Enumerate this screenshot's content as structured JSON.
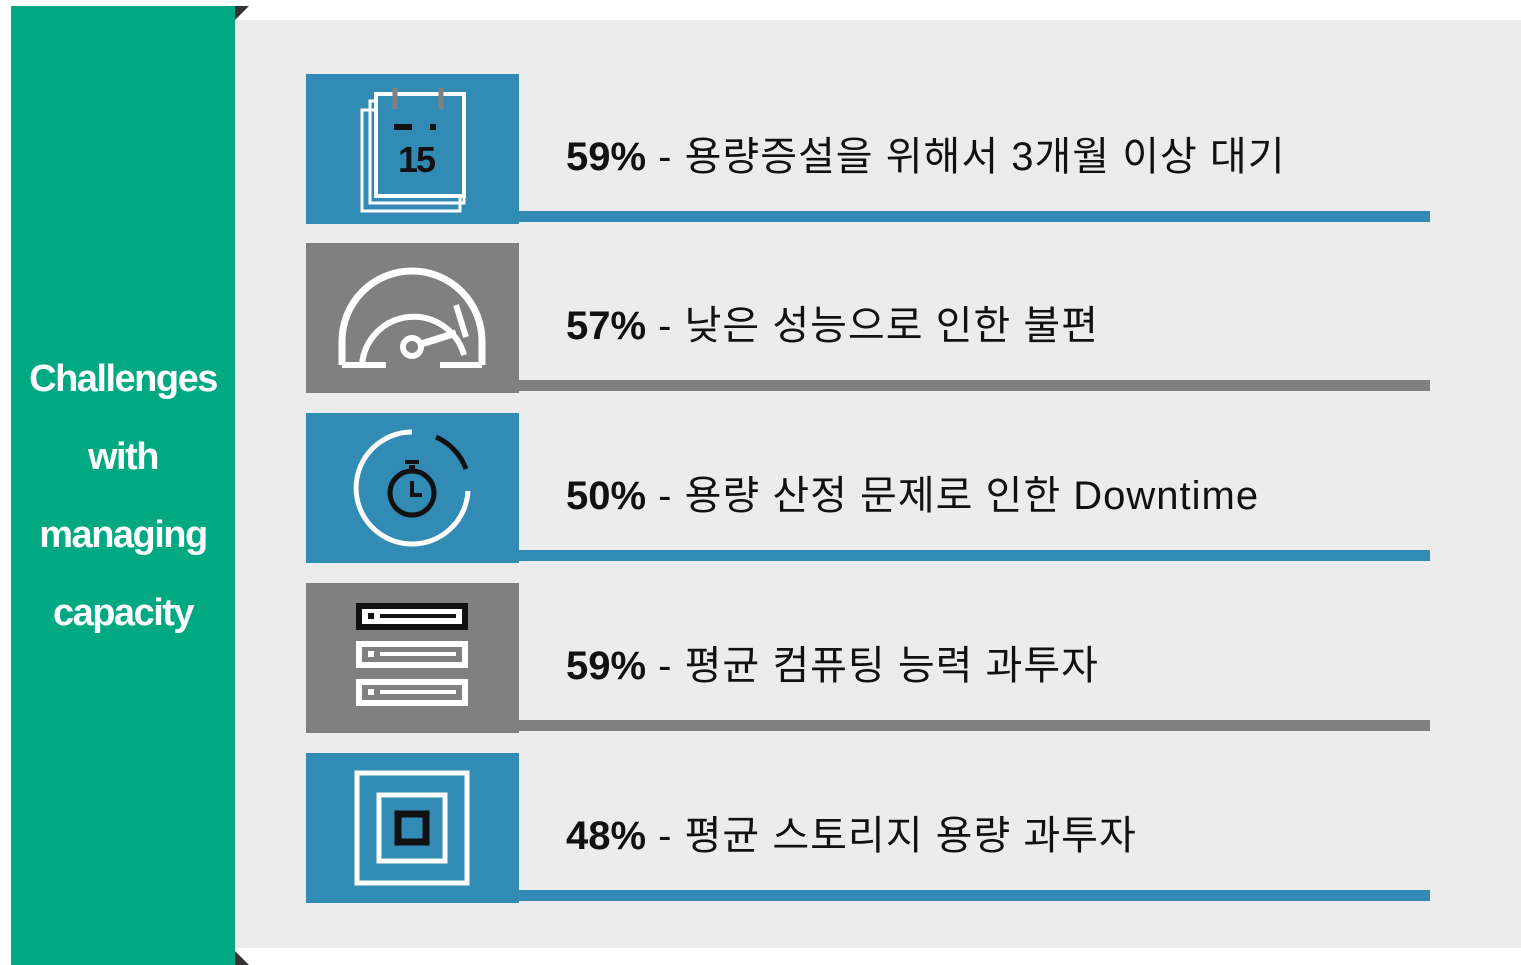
{
  "sidebar": {
    "title_lines": [
      "Challenges",
      "with",
      "managing",
      "capacity"
    ]
  },
  "items": [
    {
      "percent": "59%",
      "text": " - 용량증설을 위해서 3개월 이상 대기",
      "color": "#318bb5",
      "icon_label": "15"
    },
    {
      "percent": "57%",
      "text": " - 낮은 성능으로 인한 불편",
      "color": "#808080"
    },
    {
      "percent": "50%",
      "text": " - 용량 산정 문제로 인한 Downtime",
      "color": "#318bb5"
    },
    {
      "percent": "59%",
      "text": " - 평균 컴퓨팅 능력 과투자",
      "color": "#808080"
    },
    {
      "percent": "48%",
      "text": " - 평균 스토리지 용량 과투자",
      "color": "#318bb5"
    }
  ]
}
